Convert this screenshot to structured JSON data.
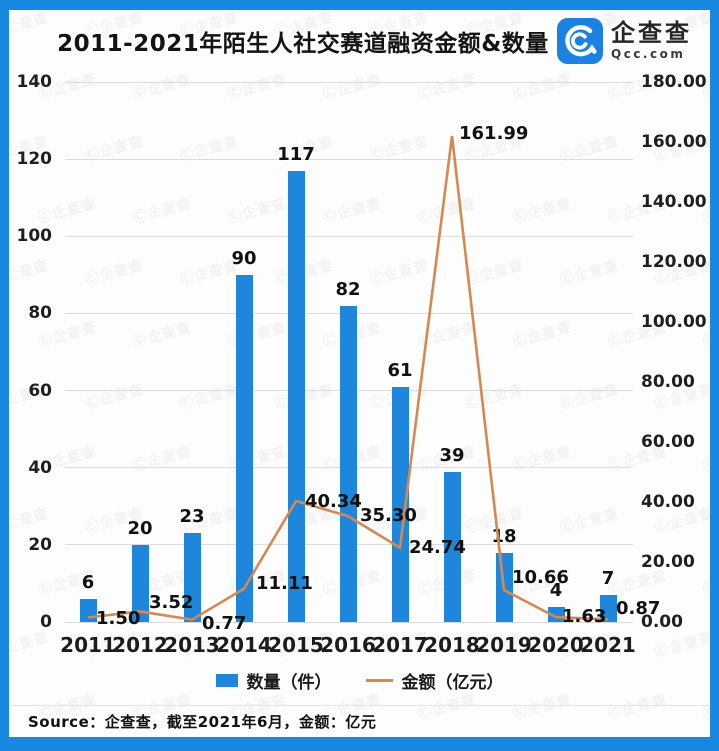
{
  "page": {
    "border_color": "#1888e0",
    "card_color": "#fdfdfd"
  },
  "header": {
    "title": "2011-2021年陌生人社交赛道融资金额&数量",
    "logo": {
      "brand": "企查查",
      "domain": "Qcc.com",
      "icon_color": "#1b82e2"
    }
  },
  "chart_data": {
    "type": "bar",
    "subtype": "bar+line combo, dual y-axis",
    "categories": [
      "2011",
      "2012",
      "2013",
      "2014",
      "2015",
      "2016",
      "2017",
      "2018",
      "2019",
      "2020",
      "2021"
    ],
    "series": [
      {
        "name": "数量（件）",
        "type": "bar",
        "axis": "left",
        "color": "#1e87dc",
        "values": [
          6,
          20,
          23,
          90,
          117,
          82,
          61,
          39,
          18,
          4,
          7
        ],
        "labels": [
          "6",
          "20",
          "23",
          "90",
          "117",
          "82",
          "61",
          "39",
          "18",
          "4",
          "7"
        ]
      },
      {
        "name": "金额（亿元）",
        "type": "line",
        "axis": "right",
        "color": "#d5884f",
        "values": [
          1.5,
          3.52,
          0.77,
          11.11,
          40.34,
          35.3,
          24.74,
          161.99,
          10.66,
          1.63,
          0.87
        ],
        "labels": [
          "1.50",
          "3.52",
          "0.77",
          "11.11",
          "40.34",
          "35.30",
          "24.74",
          "161.99",
          "10.66",
          "1.63",
          "0.87"
        ]
      }
    ],
    "left_axis": {
      "min": 0,
      "max": 140,
      "ticks": [
        "0",
        "20",
        "40",
        "60",
        "80",
        "100",
        "120",
        "140"
      ]
    },
    "right_axis": {
      "min": 0,
      "max": 180,
      "ticks": [
        "0.00",
        "20.00",
        "40.00",
        "60.00",
        "80.00",
        "100.00",
        "120.00",
        "140.00",
        "160.00",
        "180.00"
      ]
    },
    "grid": true,
    "legend_position": "bottom",
    "gridline_color": "#dcdcdc"
  },
  "legend": {
    "items": [
      {
        "label": "数量（件）",
        "swatch": "bar-swatch",
        "color": "#1e87dc"
      },
      {
        "label": "金额（亿元）",
        "swatch": "line-swatch",
        "color": "#d5884f"
      }
    ]
  },
  "footer": {
    "source": "Source：企查查，截至2021年6月，金额：亿元"
  },
  "watermark": {
    "text": "Ⓒ企查查"
  }
}
